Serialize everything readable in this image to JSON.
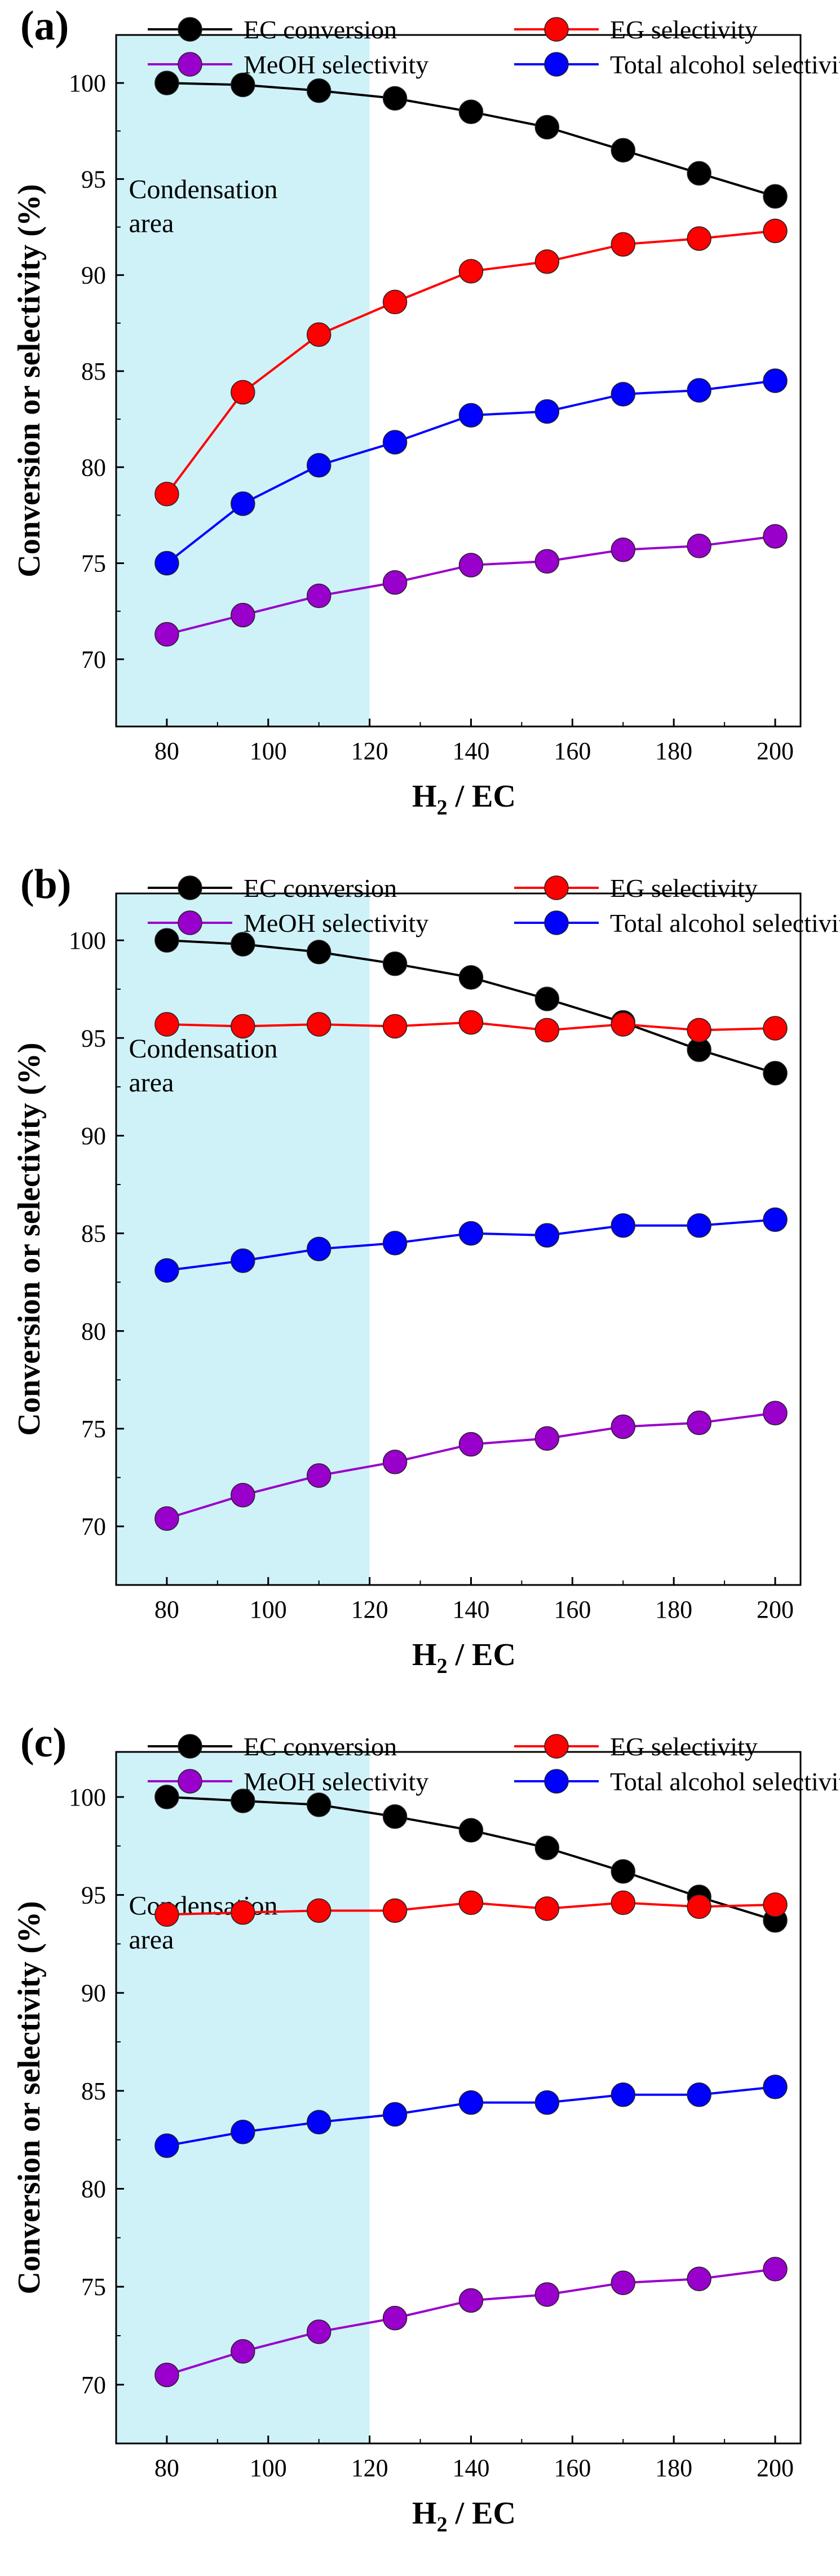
{
  "figure": {
    "x_values": [
      80,
      95,
      110,
      125,
      140,
      155,
      170,
      185,
      200
    ],
    "colors": {
      "ec_conversion": "#000000",
      "eg_selectivity": "#ff0000",
      "meoh_selectivity": "#9900cc",
      "total_alcohol": "#0000ff",
      "condensation_fill": "#cff2f8"
    }
  },
  "chart_data": [
    {
      "panel": "(a)",
      "type": "line",
      "xlabel": "H2 / EC",
      "ylabel": "Conversion or selectivity (%)",
      "xlim": [
        70,
        205
      ],
      "ylim": [
        66.5,
        102.5
      ],
      "x_ticks": [
        "80",
        "100",
        "120",
        "140",
        "160",
        "180",
        "200"
      ],
      "y_ticks": [
        "70",
        "75",
        "80",
        "85",
        "90",
        "95",
        "100"
      ],
      "annotation": {
        "line1": "Condensation",
        "line2": "area",
        "x_range": [
          70,
          120
        ]
      },
      "x": [
        80,
        95,
        110,
        125,
        140,
        155,
        170,
        185,
        200
      ],
      "series": [
        {
          "key": "ec_conversion",
          "name": "EC conversion",
          "values": [
            100.0,
            99.9,
            99.6,
            99.2,
            98.5,
            97.7,
            96.5,
            95.3,
            94.1
          ]
        },
        {
          "key": "eg_selectivity",
          "name": "EG selectivity",
          "values": [
            78.6,
            83.9,
            86.9,
            88.6,
            90.2,
            90.7,
            91.6,
            91.9,
            92.3
          ]
        },
        {
          "key": "meoh_selectivity",
          "name": "MeOH selectivity",
          "values": [
            71.3,
            72.3,
            73.3,
            74.0,
            74.9,
            75.1,
            75.7,
            75.9,
            76.4
          ]
        },
        {
          "key": "total_alcohol",
          "name": "Total alcohol selectivity",
          "values": [
            75.0,
            78.1,
            80.1,
            81.3,
            82.7,
            82.9,
            83.8,
            84.0,
            84.5
          ]
        }
      ]
    },
    {
      "panel": "(b)",
      "type": "line",
      "xlabel": "H2 / EC",
      "ylabel": "Conversion or selectivity (%)",
      "xlim": [
        70,
        205
      ],
      "ylim": [
        67.0,
        102.4
      ],
      "x_ticks": [
        "80",
        "100",
        "120",
        "140",
        "160",
        "180",
        "200"
      ],
      "y_ticks": [
        "70",
        "75",
        "80",
        "85",
        "90",
        "95",
        "100"
      ],
      "annotation": {
        "line1": "Condensation",
        "line2": "area",
        "x_range": [
          70,
          120
        ]
      },
      "x": [
        80,
        95,
        110,
        125,
        140,
        155,
        170,
        185,
        200
      ],
      "series": [
        {
          "key": "ec_conversion",
          "name": "EC conversion",
          "values": [
            100.0,
            99.8,
            99.4,
            98.8,
            98.1,
            97.0,
            95.8,
            94.4,
            93.2
          ]
        },
        {
          "key": "eg_selectivity",
          "name": "EG selectivity",
          "values": [
            95.7,
            95.6,
            95.7,
            95.6,
            95.8,
            95.4,
            95.7,
            95.4,
            95.5
          ]
        },
        {
          "key": "meoh_selectivity",
          "name": "MeOH selectivity",
          "values": [
            70.4,
            71.6,
            72.6,
            73.3,
            74.2,
            74.5,
            75.1,
            75.3,
            75.8
          ]
        },
        {
          "key": "total_alcohol",
          "name": "Total alcohol selectivity",
          "values": [
            83.1,
            83.6,
            84.2,
            84.5,
            85.0,
            84.9,
            85.4,
            85.4,
            85.7
          ]
        }
      ]
    },
    {
      "panel": "(c)",
      "type": "line",
      "xlabel": "H2 / EC",
      "ylabel": "Conversion or selectivity (%)",
      "xlim": [
        70,
        205
      ],
      "ylim": [
        67.0,
        102.3
      ],
      "x_ticks": [
        "80",
        "100",
        "120",
        "140",
        "160",
        "180",
        "200"
      ],
      "y_ticks": [
        "70",
        "75",
        "80",
        "85",
        "90",
        "95",
        "100"
      ],
      "annotation": {
        "line1": "Condensation",
        "line2": "area",
        "x_range": [
          70,
          120
        ]
      },
      "x": [
        80,
        95,
        110,
        125,
        140,
        155,
        170,
        185,
        200
      ],
      "series": [
        {
          "key": "ec_conversion",
          "name": "EC conversion",
          "values": [
            100.0,
            99.8,
            99.6,
            99.0,
            98.3,
            97.4,
            96.2,
            94.9,
            93.7
          ]
        },
        {
          "key": "eg_selectivity",
          "name": "EG selectivity",
          "values": [
            94.0,
            94.1,
            94.2,
            94.2,
            94.6,
            94.3,
            94.6,
            94.4,
            94.5
          ]
        },
        {
          "key": "meoh_selectivity",
          "name": "MeOH selectivity",
          "values": [
            70.5,
            71.7,
            72.7,
            73.4,
            74.3,
            74.6,
            75.2,
            75.4,
            75.9
          ]
        },
        {
          "key": "total_alcohol",
          "name": "Total alcohol selectivity",
          "values": [
            82.2,
            82.9,
            83.4,
            83.8,
            84.4,
            84.4,
            84.8,
            84.8,
            85.2
          ]
        }
      ]
    }
  ]
}
